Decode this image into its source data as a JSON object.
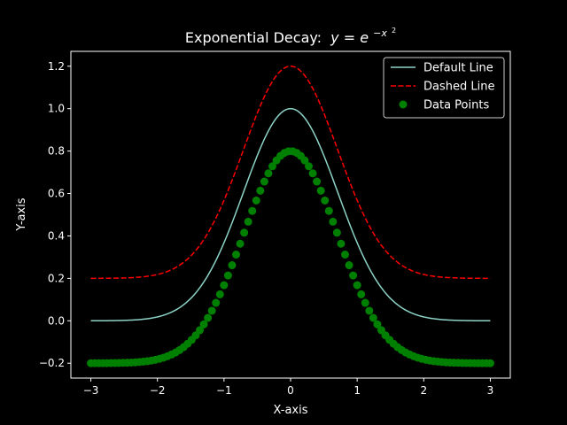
{
  "chart_data": {
    "type": "line",
    "title": "Exponential Decay:",
    "title_math": {
      "lhs": "y",
      "eq": " = ",
      "base": "e",
      "exp": "−x",
      "exp_power": "2"
    },
    "xlabel": "X-axis",
    "ylabel": "Y-axis",
    "xlim": [
      -3.3,
      3.3
    ],
    "ylim": [
      -0.27,
      1.27
    ],
    "x_ticks": [
      -3,
      -2,
      -1,
      0,
      1,
      2,
      3
    ],
    "x_tick_labels": [
      "−3",
      "−2",
      "−1",
      "0",
      "1",
      "2",
      "3"
    ],
    "y_ticks": [
      -0.2,
      0,
      0.2,
      0.4,
      0.6,
      0.8,
      1.0,
      1.2
    ],
    "y_tick_labels": [
      "−0.2",
      "0.0",
      "0.2",
      "0.4",
      "0.6",
      "0.8",
      "1.0",
      "1.2"
    ],
    "grid": false,
    "legend_position": "top-right",
    "series": [
      {
        "name": "Default Line",
        "kind": "line",
        "style": "solid",
        "color": "#8dd3c7",
        "formula": "exp(-x^2)",
        "x_range": [
          -3,
          3
        ],
        "samples": 300
      },
      {
        "name": "Dashed Line",
        "kind": "line",
        "style": "dashed",
        "color": "#ff0000",
        "formula": "exp(-x^2) + 0.2",
        "x_range": [
          -3,
          3
        ],
        "samples": 300
      },
      {
        "name": "Data Points",
        "kind": "scatter",
        "style": "marker-o",
        "color": "#008000",
        "formula": "exp(-x^2) - 0.2",
        "x_range": [
          -3,
          3
        ],
        "samples": 100
      }
    ]
  },
  "colors": {
    "background": "#000000",
    "foreground": "#ffffff"
  }
}
